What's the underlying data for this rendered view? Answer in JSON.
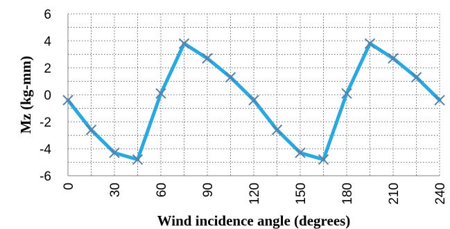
{
  "chart_data": {
    "type": "line",
    "title": "",
    "xlabel": "Wind incidence angle (degrees)",
    "ylabel": "Mz (kg-mm)",
    "xlim": [
      0,
      240
    ],
    "ylim": [
      -6,
      6
    ],
    "x_ticks": [
      "0",
      "30",
      "60",
      "90",
      "120",
      "150",
      "180",
      "210",
      "240"
    ],
    "y_ticks": [
      "6",
      "4",
      "2",
      "0",
      "-2",
      "-4",
      "-6"
    ],
    "grid": "dotted, major and minor",
    "legend": "none",
    "series": [
      {
        "color": "#2aa8e0",
        "marker": "x",
        "marker_color": "#5b7fa6",
        "x": [
          0,
          15,
          30,
          45,
          60,
          75,
          90,
          105,
          120,
          135,
          150,
          165,
          180,
          195,
          210,
          225,
          240
        ],
        "y": [
          -0.4,
          -2.6,
          -4.3,
          -4.8,
          0.1,
          3.8,
          2.7,
          1.3,
          -0.4,
          -2.6,
          -4.3,
          -4.8,
          0.1,
          3.8,
          2.7,
          1.3,
          -0.4
        ]
      }
    ]
  }
}
